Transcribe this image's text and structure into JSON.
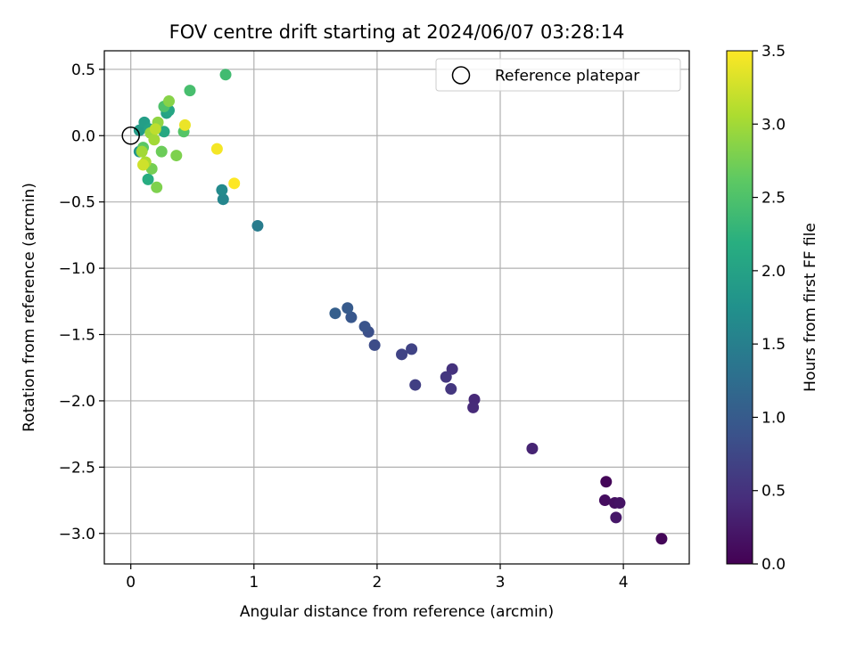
{
  "chart_data": {
    "type": "scatter",
    "title": "FOV centre drift starting at 2024/06/07 03:28:14",
    "xlabel": "Angular distance from reference (arcmin)",
    "ylabel": "Rotation from reference (arcmin)",
    "xlim": [
      -0.215,
      4.535
    ],
    "ylim": [
      -3.23,
      0.64
    ],
    "xticks": [
      0,
      1,
      2,
      3,
      4
    ],
    "yticks": [
      0.5,
      0.0,
      -0.5,
      -1.0,
      -1.5,
      -2.0,
      -2.5,
      -3.0
    ],
    "xtick_labels": [
      "0",
      "1",
      "2",
      "3",
      "4"
    ],
    "ytick_labels": [
      "0.5",
      "0.0",
      "−0.5",
      "−1.0",
      "−1.5",
      "−2.0",
      "−2.5",
      "−3.0"
    ],
    "grid": true,
    "legend": {
      "position": "top-right",
      "label": "Reference platepar"
    },
    "reference_point": {
      "x": 0,
      "y": 0,
      "marker": "open-circle"
    },
    "colorbar": {
      "label": "Hours from first FF file",
      "colormap": "viridis",
      "range": [
        0.0,
        3.5
      ],
      "ticks": [
        0.0,
        0.5,
        1.0,
        1.5,
        2.0,
        2.5,
        3.0,
        3.5
      ],
      "tick_labels": [
        "0.0",
        "0.5",
        "1.0",
        "1.5",
        "2.0",
        "2.5",
        "3.0",
        "3.5"
      ]
    },
    "points": [
      {
        "x": 4.31,
        "y": -3.04,
        "h": 0.05
      },
      {
        "x": 3.86,
        "y": -2.61,
        "h": 0.05
      },
      {
        "x": 3.85,
        "y": -2.75,
        "h": 0.12
      },
      {
        "x": 3.93,
        "y": -2.77,
        "h": 0.15
      },
      {
        "x": 3.97,
        "y": -2.77,
        "h": 0.18
      },
      {
        "x": 3.94,
        "y": -2.88,
        "h": 0.22
      },
      {
        "x": 3.26,
        "y": -2.36,
        "h": 0.35
      },
      {
        "x": 2.79,
        "y": -1.99,
        "h": 0.4
      },
      {
        "x": 2.78,
        "y": -2.05,
        "h": 0.42
      },
      {
        "x": 2.61,
        "y": -1.76,
        "h": 0.5
      },
      {
        "x": 2.56,
        "y": -1.82,
        "h": 0.55
      },
      {
        "x": 2.6,
        "y": -1.91,
        "h": 0.55
      },
      {
        "x": 2.31,
        "y": -1.88,
        "h": 0.65
      },
      {
        "x": 2.28,
        "y": -1.61,
        "h": 0.7
      },
      {
        "x": 2.2,
        "y": -1.65,
        "h": 0.7
      },
      {
        "x": 1.98,
        "y": -1.58,
        "h": 0.8
      },
      {
        "x": 1.93,
        "y": -1.48,
        "h": 0.85
      },
      {
        "x": 1.9,
        "y": -1.44,
        "h": 0.9
      },
      {
        "x": 1.79,
        "y": -1.37,
        "h": 0.95
      },
      {
        "x": 1.76,
        "y": -1.3,
        "h": 1.0
      },
      {
        "x": 1.66,
        "y": -1.34,
        "h": 1.05
      },
      {
        "x": 1.03,
        "y": -0.68,
        "h": 1.45
      },
      {
        "x": 0.75,
        "y": -0.48,
        "h": 1.6
      },
      {
        "x": 0.74,
        "y": -0.41,
        "h": 1.65
      },
      {
        "x": 0.07,
        "y": -0.12,
        "h": 1.8
      },
      {
        "x": 0.07,
        "y": 0.04,
        "h": 1.9
      },
      {
        "x": 0.11,
        "y": 0.1,
        "h": 1.95
      },
      {
        "x": 0.15,
        "y": 0.05,
        "h": 2.0
      },
      {
        "x": 0.29,
        "y": 0.17,
        "h": 2.0
      },
      {
        "x": 0.31,
        "y": 0.19,
        "h": 2.05
      },
      {
        "x": 0.27,
        "y": 0.03,
        "h": 2.1
      },
      {
        "x": 0.14,
        "y": -0.33,
        "h": 2.15
      },
      {
        "x": 0.77,
        "y": 0.46,
        "h": 2.4
      },
      {
        "x": 0.48,
        "y": 0.34,
        "h": 2.45
      },
      {
        "x": 0.27,
        "y": 0.22,
        "h": 2.5
      },
      {
        "x": 0.43,
        "y": 0.03,
        "h": 2.55
      },
      {
        "x": 0.1,
        "y": -0.09,
        "h": 2.6
      },
      {
        "x": 0.25,
        "y": -0.12,
        "h": 2.7
      },
      {
        "x": 0.17,
        "y": -0.25,
        "h": 2.75
      },
      {
        "x": 0.21,
        "y": -0.39,
        "h": 2.8
      },
      {
        "x": 0.37,
        "y": -0.15,
        "h": 2.8
      },
      {
        "x": 0.31,
        "y": 0.26,
        "h": 2.85
      },
      {
        "x": 0.22,
        "y": 0.1,
        "h": 2.9
      },
      {
        "x": 0.16,
        "y": 0.02,
        "h": 2.95
      },
      {
        "x": 0.19,
        "y": -0.03,
        "h": 3.0
      },
      {
        "x": 0.09,
        "y": -0.12,
        "h": 3.0
      },
      {
        "x": 0.12,
        "y": -0.2,
        "h": 3.05
      },
      {
        "x": 0.2,
        "y": 0.05,
        "h": 3.15
      },
      {
        "x": 0.1,
        "y": -0.22,
        "h": 3.25
      },
      {
        "x": 0.44,
        "y": 0.08,
        "h": 3.4
      },
      {
        "x": 0.7,
        "y": -0.1,
        "h": 3.45
      },
      {
        "x": 0.84,
        "y": -0.36,
        "h": 3.5
      }
    ]
  }
}
